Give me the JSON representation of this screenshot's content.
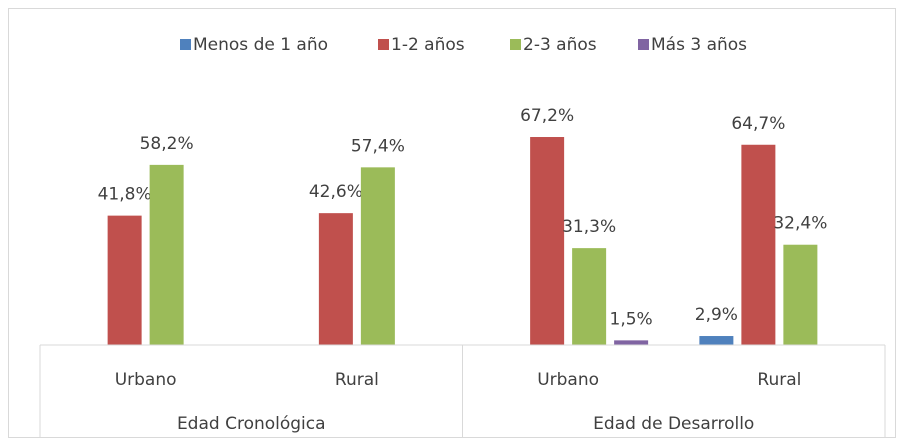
{
  "chart_data": {
    "type": "bar",
    "categories": [
      "Urbano",
      "Rural",
      "Urbano",
      "Rural"
    ],
    "groups": [
      "Edad Cronológica",
      "Edad de Desarrollo"
    ],
    "ylim": [
      0,
      100
    ],
    "series": [
      {
        "name": "Menos de 1 año",
        "color": "#4f81bd",
        "values": [
          null,
          null,
          null,
          2.9
        ],
        "value_labels": [
          null,
          null,
          null,
          "2,9%"
        ]
      },
      {
        "name": "1-2 años",
        "color": "#c0504d",
        "values": [
          41.8,
          42.6,
          67.2,
          64.7
        ],
        "value_labels": [
          "41,8%",
          "42,6%",
          "67,2%",
          "64,7%"
        ]
      },
      {
        "name": "2-3 años",
        "color": "#9bbb59",
        "values": [
          58.2,
          57.4,
          31.3,
          32.4
        ],
        "value_labels": [
          "58,2%",
          "57,4%",
          "31,3%",
          "32,4%"
        ]
      },
      {
        "name": "Más 3 años",
        "color": "#8064a2",
        "values": [
          null,
          null,
          1.5,
          null
        ],
        "value_labels": [
          null,
          null,
          "1,5%",
          null
        ]
      }
    ]
  }
}
